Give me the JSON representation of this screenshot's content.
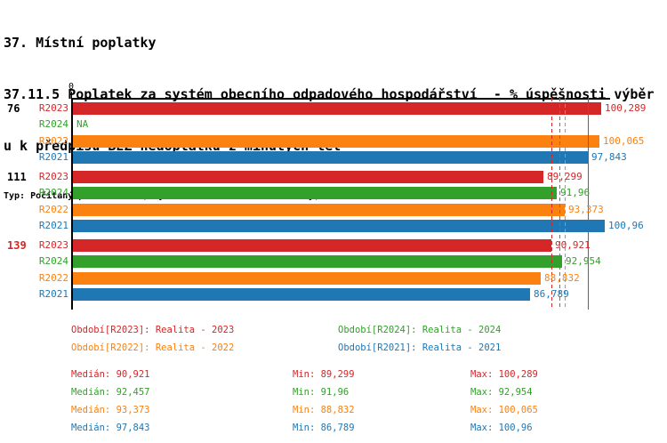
{
  "header": {
    "line1": "37. Místní poplatky",
    "line2": "37.11.5 Poplatek za systém obecního odpadového hospodářství  - % úspěšnosti výběr",
    "line3": "u k předpisu BEZ nedoplatků z minulých let",
    "meta": "Typ: Počítaný podle vzorce, Vyhodnocení: Absolutní hodnoty, Průměr: Medián"
  },
  "chart_data": {
    "type": "bar",
    "orientation": "horizontal",
    "x_axis": {
      "zero_label": "0",
      "xlim": [
        0,
        102
      ],
      "grid": false
    },
    "series_colors": {
      "R2023": "#d62728",
      "R2024": "#33a02c",
      "R2022": "#fb8111",
      "R2021": "#1f77b4"
    },
    "row_order": [
      "R2023",
      "R2024",
      "R2022",
      "R2021"
    ],
    "groups": [
      {
        "label": "76",
        "label_color": "#000000",
        "bars": [
          {
            "series": "R2023",
            "value": 100.289,
            "value_label": "100,289"
          },
          {
            "series": "R2024",
            "value": null,
            "value_label": "NA"
          },
          {
            "series": "R2022",
            "value": 100.065,
            "value_label": "100,065"
          },
          {
            "series": "R2021",
            "value": 97.843,
            "value_label": "97,843"
          }
        ]
      },
      {
        "label": "111",
        "label_color": "#000000",
        "bars": [
          {
            "series": "R2023",
            "value": 89.299,
            "value_label": "89,299"
          },
          {
            "series": "R2024",
            "value": 91.96,
            "value_label": "91,96"
          },
          {
            "series": "R2022",
            "value": 93.373,
            "value_label": "93,373"
          },
          {
            "series": "R2021",
            "value": 100.96,
            "value_label": "100,96"
          }
        ]
      },
      {
        "label": "139",
        "label_color": "#d62728",
        "bars": [
          {
            "series": "R2023",
            "value": 90.921,
            "value_label": "90,921"
          },
          {
            "series": "R2024",
            "value": 92.954,
            "value_label": "92,954"
          },
          {
            "series": "R2022",
            "value": 88.832,
            "value_label": "88,832"
          },
          {
            "series": "R2021",
            "value": 86.789,
            "value_label": "86,789"
          }
        ]
      }
    ],
    "median_lines": [
      {
        "series": "R2023",
        "value": 90.921,
        "style": "dashed"
      },
      {
        "series": "R2024",
        "value": 92.457,
        "style": "dashed"
      },
      {
        "series": "R2022",
        "value": 93.373,
        "style": "dashed"
      },
      {
        "series": "R2021",
        "value": 97.843,
        "style": "solid"
      }
    ]
  },
  "legend": {
    "items": [
      {
        "series": "R2023",
        "text": "Období[R2023]: Realita - 2023"
      },
      {
        "series": "R2024",
        "text": "Období[R2024]: Realita - 2024"
      },
      {
        "series": "R2022",
        "text": "Období[R2022]: Realita - 2022"
      },
      {
        "series": "R2021",
        "text": "Období[R2021]: Realita - 2021"
      }
    ]
  },
  "stats": {
    "rows": [
      {
        "series": "R2023",
        "median": "Medián: 90,921",
        "min": "Min: 89,299",
        "max": "Max: 100,289"
      },
      {
        "series": "R2024",
        "median": "Medián: 92,457",
        "min": "Min: 91,96",
        "max": "Max: 92,954"
      },
      {
        "series": "R2022",
        "median": "Medián: 93,373",
        "min": "Min: 88,832",
        "max": "Max: 100,065"
      },
      {
        "series": "R2021",
        "median": "Medián: 97,843",
        "min": "Min: 86,789",
        "max": "Max: 100,96"
      }
    ]
  }
}
